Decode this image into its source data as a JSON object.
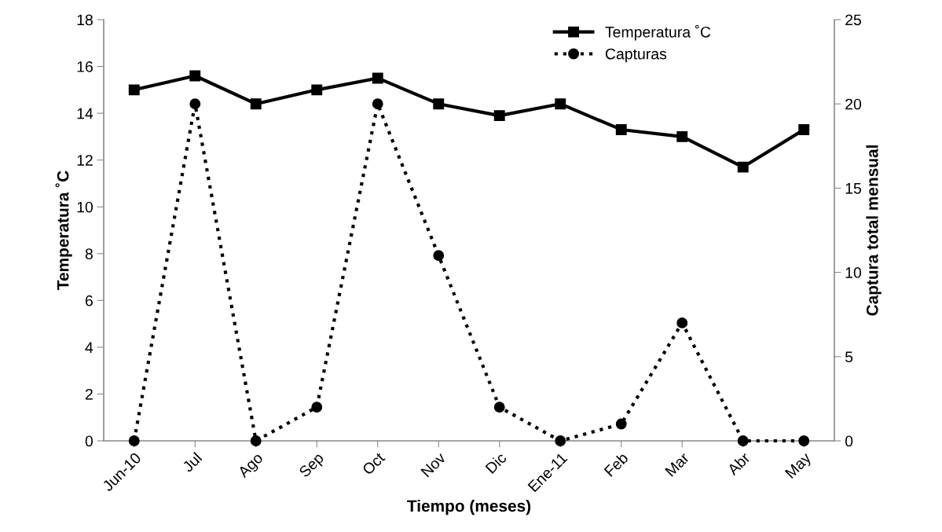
{
  "chart_data": {
    "type": "line",
    "xlabel": "Tiempo (meses)",
    "ylabel": "Temperatura ˚C",
    "y2label": "Captura total mensual",
    "categories": [
      "Jun-10",
      "Jul",
      "Ago",
      "Sep",
      "Oct",
      "Nov",
      "Dic",
      "Ene-11",
      "Feb",
      "Mar",
      "Abr",
      "May"
    ],
    "series": [
      {
        "name": "Temperatura ˚C",
        "color": "#000000",
        "marker": "square",
        "line_style": "solid",
        "values": [
          15.0,
          15.6,
          14.4,
          15.0,
          15.5,
          14.4,
          13.9,
          14.4,
          13.3,
          13.0,
          11.7,
          13.3
        ]
      },
      {
        "name": "Capturas",
        "color": "#000000",
        "marker": "circle",
        "line_style": "dotted",
        "axis": "y2",
        "values": [
          0,
          20,
          0,
          2,
          20,
          11,
          2,
          0,
          1,
          7,
          0,
          0
        ]
      }
    ],
    "ylim": [
      0,
      18
    ],
    "yticks": [
      0,
      2,
      4,
      6,
      8,
      10,
      12,
      14,
      16,
      18
    ],
    "y2lim": [
      0,
      25
    ],
    "y2ticks": [
      0,
      5,
      10,
      15,
      20,
      25
    ],
    "grid": false,
    "legend": "top right"
  }
}
